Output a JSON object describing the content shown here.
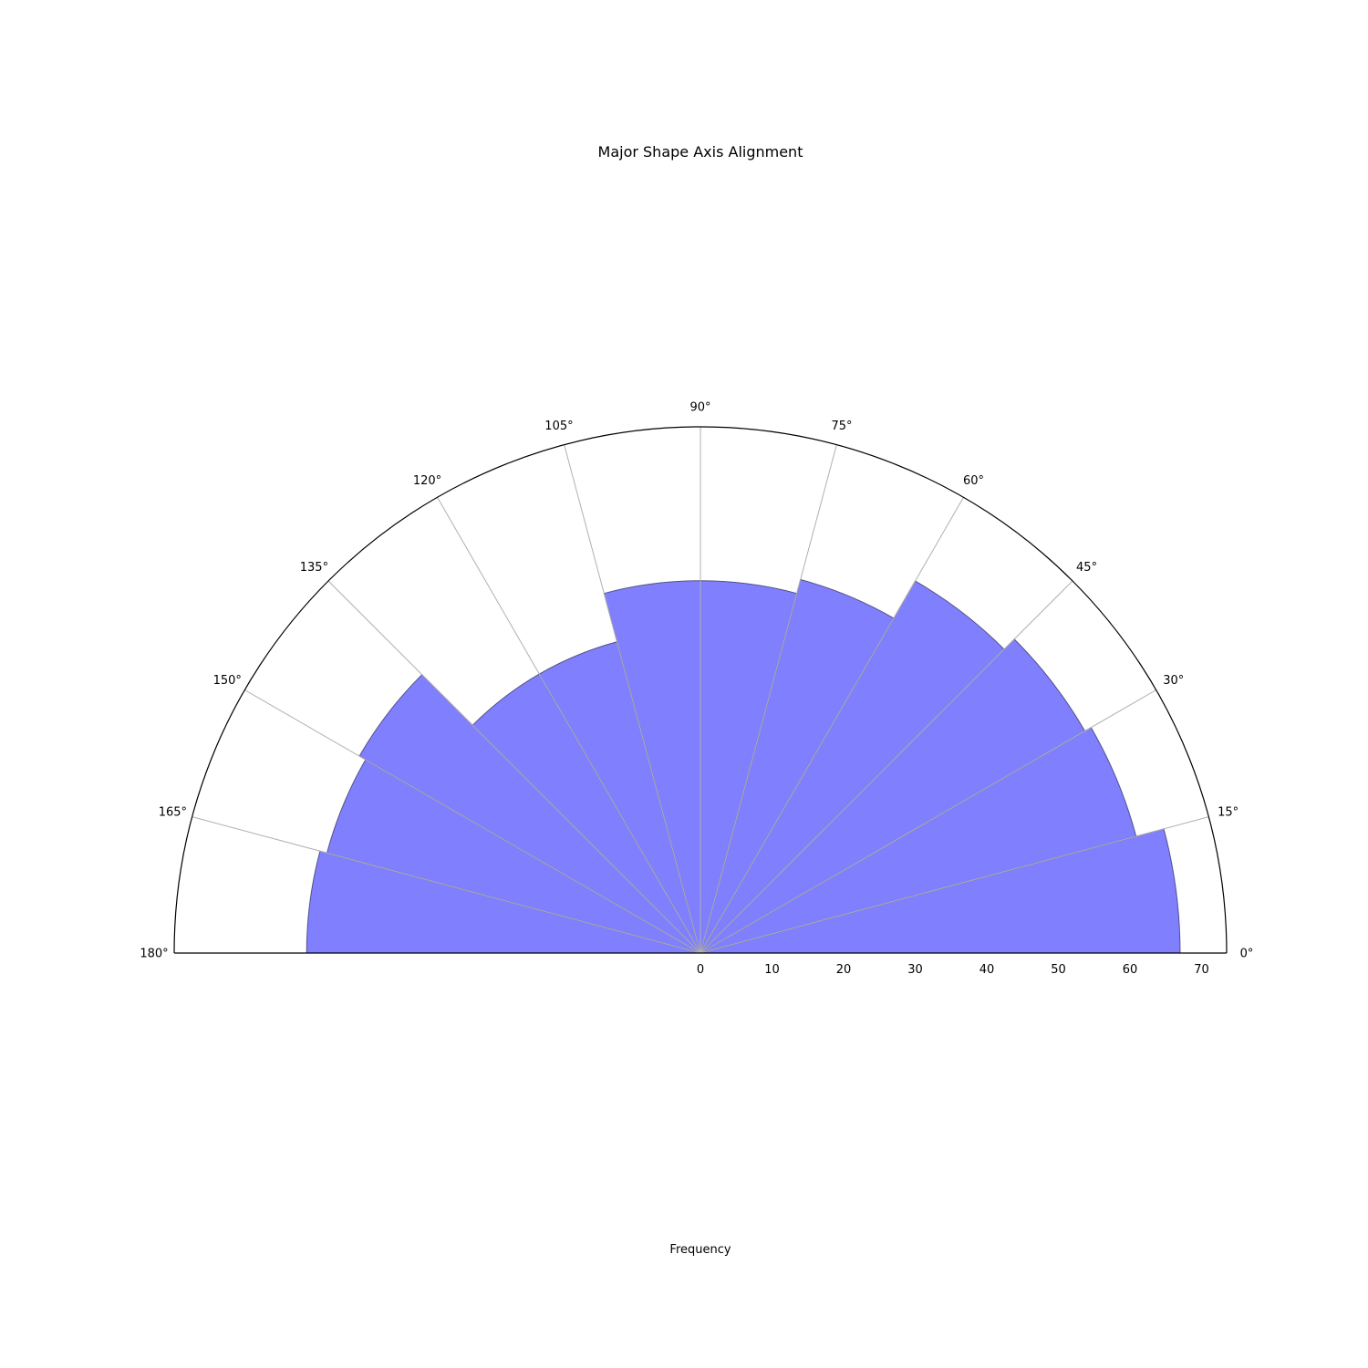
{
  "chart_data": {
    "type": "polar-bar",
    "title": "Major Shape Axis Alignment",
    "xlabel": "Frequency",
    "angle_unit": "degrees",
    "angle_range": [
      0,
      180
    ],
    "bin_width": 15,
    "bins": [
      {
        "start": 0,
        "end": 15,
        "value": 67
      },
      {
        "start": 15,
        "end": 30,
        "value": 63
      },
      {
        "start": 30,
        "end": 45,
        "value": 62
      },
      {
        "start": 45,
        "end": 60,
        "value": 60
      },
      {
        "start": 60,
        "end": 75,
        "value": 54
      },
      {
        "start": 75,
        "end": 90,
        "value": 52
      },
      {
        "start": 90,
        "end": 105,
        "value": 52
      },
      {
        "start": 105,
        "end": 120,
        "value": 45
      },
      {
        "start": 120,
        "end": 135,
        "value": 45
      },
      {
        "start": 135,
        "end": 150,
        "value": 55
      },
      {
        "start": 150,
        "end": 165,
        "value": 54
      },
      {
        "start": 165,
        "end": 180,
        "value": 55
      }
    ],
    "rlim": [
      0,
      73.5
    ],
    "r_ticks": [
      0,
      10,
      20,
      30,
      40,
      50,
      60,
      70
    ],
    "r_tick_labels": [
      "0",
      "10",
      "20",
      "30",
      "40",
      "50",
      "60",
      "70"
    ],
    "angle_ticks": [
      0,
      15,
      30,
      45,
      60,
      75,
      90,
      105,
      120,
      135,
      150,
      165,
      180
    ],
    "angle_tick_labels": [
      "0°",
      "15°",
      "30°",
      "45°",
      "60°",
      "75°",
      "90°",
      "105°",
      "120°",
      "135°",
      "150°",
      "165°",
      "180°"
    ],
    "grid": true,
    "legend": "none",
    "colors": {
      "bar_fill": "#8080ff",
      "bar_edge": "#50508a",
      "grid": "#b0b0b0",
      "spine": "#000000"
    }
  }
}
